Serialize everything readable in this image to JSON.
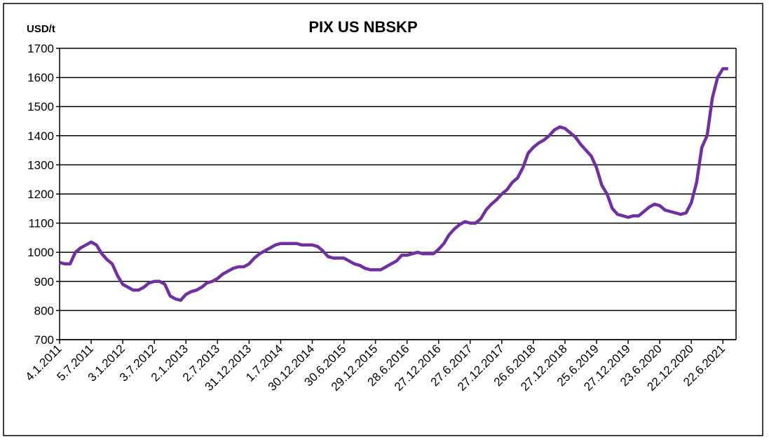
{
  "chart_data": {
    "type": "line",
    "title": "PIX US NBSKP",
    "y_label": "USD/t",
    "categories": [
      "4.1.2011",
      null,
      null,
      null,
      null,
      null,
      "5.7.2011",
      null,
      null,
      null,
      null,
      null,
      "3.1.2012",
      null,
      null,
      null,
      null,
      null,
      "3.7.2012",
      null,
      null,
      null,
      null,
      null,
      "2.1.2013",
      null,
      null,
      null,
      null,
      null,
      "2.7.2013",
      null,
      null,
      null,
      null,
      null,
      "31.12.2013",
      null,
      null,
      null,
      null,
      null,
      "1.7.2014",
      null,
      null,
      null,
      null,
      null,
      "30.12.2014",
      null,
      null,
      null,
      null,
      null,
      "30.6.2015",
      null,
      null,
      null,
      null,
      null,
      "29.12.2015",
      null,
      null,
      null,
      null,
      null,
      "28.6.2016",
      null,
      null,
      null,
      null,
      null,
      "27.12.2016",
      null,
      null,
      null,
      null,
      null,
      "27.6.2017",
      null,
      null,
      null,
      null,
      null,
      "27.12.2017",
      null,
      null,
      null,
      null,
      null,
      "26.6.2018",
      null,
      null,
      null,
      null,
      null,
      "27.12.2018",
      null,
      null,
      null,
      null,
      null,
      "25.6.2019",
      null,
      null,
      null,
      null,
      null,
      "27.12.2019",
      null,
      null,
      null,
      null,
      null,
      "23.6.2020",
      null,
      null,
      null,
      null,
      null,
      "22.12.2020",
      null,
      null,
      null,
      null,
      null,
      "22.6.2021",
      null
    ],
    "series": [
      {
        "color": "#7030a0",
        "values": [
          965,
          960,
          960,
          1000,
          1015,
          1025,
          1035,
          1025,
          995,
          975,
          960,
          920,
          890,
          880,
          870,
          870,
          880,
          895,
          900,
          900,
          890,
          850,
          840,
          835,
          855,
          865,
          870,
          880,
          895,
          900,
          910,
          925,
          935,
          945,
          950,
          950,
          960,
          980,
          995,
          1005,
          1015,
          1025,
          1030,
          1030,
          1030,
          1030,
          1025,
          1025,
          1025,
          1020,
          1005,
          985,
          980,
          980,
          980,
          970,
          960,
          955,
          945,
          940,
          940,
          940,
          950,
          960,
          970,
          990,
          990,
          995,
          1000,
          995,
          995,
          995,
          1010,
          1030,
          1060,
          1080,
          1095,
          1105,
          1100,
          1100,
          1115,
          1145,
          1165,
          1180,
          1200,
          1215,
          1240,
          1255,
          1290,
          1340,
          1360,
          1375,
          1385,
          1400,
          1420,
          1430,
          1425,
          1410,
          1395,
          1370,
          1350,
          1330,
          1290,
          1230,
          1200,
          1150,
          1130,
          1125,
          1120,
          1125,
          1125,
          1140,
          1155,
          1165,
          1160,
          1145,
          1140,
          1135,
          1130,
          1135,
          1170,
          1240,
          1360,
          1400,
          1530,
          1600,
          1630,
          1630
        ]
      }
    ],
    "ylim": [
      700,
      1700
    ],
    "yticks": [
      700,
      800,
      900,
      1000,
      1100,
      1200,
      1300,
      1400,
      1500,
      1600,
      1700
    ],
    "grid": true
  }
}
